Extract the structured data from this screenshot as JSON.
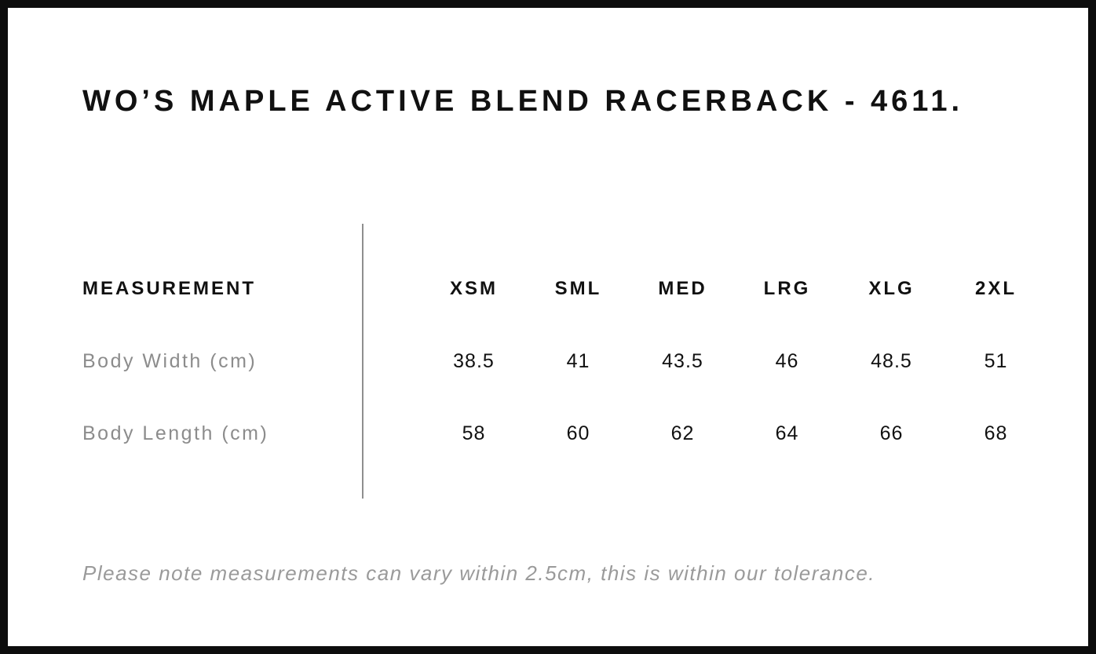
{
  "page": {
    "title": "WO’S MAPLE ACTIVE BLEND RACERBACK - 4611.",
    "footnote": "Please note measurements can vary within 2.5cm, this is within our tolerance."
  },
  "size_chart": {
    "header_label": "MEASUREMENT",
    "size_headers": [
      "XSM",
      "SML",
      "MED",
      "LRG",
      "XLG",
      "2XL"
    ],
    "rows": [
      {
        "label": "Body Width (cm)",
        "values": [
          "38.5",
          "41",
          "43.5",
          "46",
          "48.5",
          "51"
        ]
      },
      {
        "label": "Body Length (cm)",
        "values": [
          "58",
          "60",
          "62",
          "64",
          "66",
          "68"
        ]
      }
    ]
  },
  "colors": {
    "border": "#0d0d0d",
    "heading_text": "#111111",
    "muted_text": "#8c8c8c",
    "footnote_text": "#9a9a9a",
    "divider": "#8f8f8f",
    "background": "#ffffff"
  }
}
